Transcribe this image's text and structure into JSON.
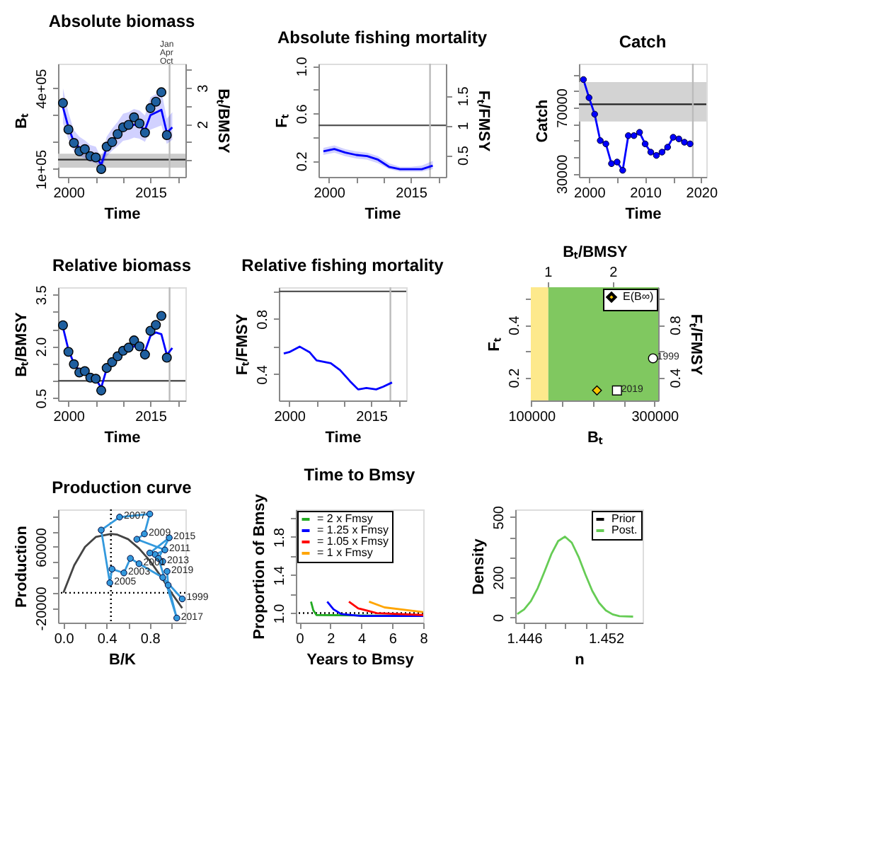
{
  "chart_data": [
    {
      "type": "line",
      "title": "Absolute biomass",
      "xlabel": "Time",
      "ylabel": "Bₜ",
      "y2label": "Bₜ/BMSY",
      "annotations": [
        "Jan",
        "Apr",
        "Oct"
      ],
      "xlim": [
        1998.1,
        2021.4
      ],
      "xticks": [
        2000,
        {
          "value": 2005,
          "label": null
        },
        {
          "value": 2010,
          "label": null
        },
        2015,
        {
          "value": 2020,
          "label": null
        }
      ],
      "ylim": [
        71000,
        491000
      ],
      "yticks": [
        {
          "value": 100000,
          "label": "1e+05"
        },
        {
          "value": 200000,
          "label": null
        },
        {
          "value": 300000,
          "label": null
        },
        {
          "value": 400000,
          "label": "4e+05"
        }
      ],
      "y2lim": [
        0.54,
        3.67
      ],
      "y2ticks": [
        {
          "value": 1,
          "label": null
        },
        {
          "value": 1.5,
          "label": null
        },
        2,
        {
          "value": 2.5,
          "label": null
        },
        3,
        {
          "value": 3.5,
          "label": null
        }
      ],
      "bands": [
        {
          "axis": "y",
          "from": 105000,
          "to": 157000,
          "color": "#cccccc"
        }
      ],
      "ref_lines": [
        {
          "axis": "y",
          "value": 135000,
          "color": "#333333"
        },
        {
          "axis": "x",
          "value": 2018.5,
          "color": "#bbbbbb"
        }
      ],
      "series": [
        {
          "type": "line",
          "color": "#0000ff",
          "x": [
            1999,
            2000,
            2001,
            2002,
            2003,
            2004,
            2005,
            2006,
            2007,
            2008,
            2009,
            2010,
            2011,
            2012,
            2013,
            2014,
            2015,
            2016,
            2017,
            2018,
            2019
          ],
          "values": [
            330000,
            255000,
            200000,
            180000,
            170000,
            155000,
            150000,
            115000,
            180000,
            205000,
            225000,
            250000,
            255000,
            265000,
            260000,
            245000,
            300000,
            310000,
            320000,
            235000,
            255000
          ],
          "lower": [
            270000,
            210000,
            165000,
            148000,
            140000,
            127000,
            123000,
            95000,
            148000,
            168000,
            185000,
            205000,
            209000,
            217000,
            213000,
            201000,
            246000,
            254000,
            262000,
            193000,
            209000
          ],
          "upper": [
            400000,
            310000,
            244000,
            220000,
            207000,
            189000,
            183000,
            140000,
            220000,
            250000,
            275000,
            305000,
            311000,
            323000,
            317000,
            299000,
            366000,
            378000,
            390000,
            287000,
            311000
          ]
        },
        {
          "type": "scatter",
          "marker": "circle",
          "color": "#1f5f9f",
          "x": [
            1999,
            2000,
            2001,
            2002,
            2003,
            2004,
            2005,
            2006,
            2007,
            2008,
            2009,
            2010,
            2011,
            2012,
            2013,
            2014,
            2015,
            2016,
            2017,
            2018
          ],
          "values": [
            345000,
            247000,
            197000,
            166000,
            174000,
            148000,
            143000,
            100000,
            183000,
            200000,
            230000,
            255000,
            264000,
            292000,
            269000,
            235000,
            326000,
            350000,
            385000,
            226000
          ]
        }
      ]
    },
    {
      "type": "line",
      "title": "Absolute fishing mortality",
      "xlabel": "Time",
      "ylabel": "Fₜ",
      "y2label": "Fₜ/FMSY",
      "xlim": [
        1998.1,
        2021.4
      ],
      "xticks": [
        2000,
        {
          "value": 2005,
          "label": null
        },
        {
          "value": 2010,
          "label": null
        },
        2015,
        {
          "value": 2020,
          "label": null
        }
      ],
      "ylim": [
        0.065,
        1.02
      ],
      "yticks": [
        0.2,
        {
          "value": 0.4,
          "label": null
        },
        0.6,
        {
          "value": 0.8,
          "label": null
        },
        {
          "value": 1,
          "label": "1.0"
        }
      ],
      "y2lim": [
        0.13,
        2.04
      ],
      "y2ticks": [
        0.5,
        1,
        1.5
      ],
      "ref_lines": [
        {
          "axis": "y",
          "value": 0.5,
          "color": "#555555"
        },
        {
          "axis": "x",
          "value": 2018.5,
          "color": "#bbbbbb"
        }
      ],
      "series": [
        {
          "type": "line",
          "color": "#0000ff",
          "x": [
            1999,
            2001,
            2003,
            2005,
            2007,
            2009,
            2011,
            2013,
            2015,
            2017,
            2019
          ],
          "values": [
            0.28,
            0.3,
            0.27,
            0.25,
            0.24,
            0.21,
            0.15,
            0.13,
            0.13,
            0.13,
            0.16
          ],
          "lower": [
            0.25,
            0.27,
            0.24,
            0.22,
            0.21,
            0.18,
            0.13,
            0.11,
            0.11,
            0.11,
            0.13
          ],
          "upper": [
            0.31,
            0.33,
            0.3,
            0.28,
            0.27,
            0.24,
            0.18,
            0.15,
            0.15,
            0.16,
            0.2
          ]
        }
      ]
    },
    {
      "type": "line",
      "title": "Catch",
      "xlabel": "Time",
      "ylabel": "Catch",
      "marker": "circle",
      "xlim": [
        1998.2,
        2020.9
      ],
      "xticks": [
        2000,
        {
          "value": 2005,
          "label": null
        },
        2010,
        {
          "value": 2015,
          "label": null
        },
        2020
      ],
      "ylim": [
        28000,
        96600
      ],
      "yticks": [
        30000,
        {
          "value": 40000,
          "label": null
        },
        {
          "value": 50000,
          "label": null
        },
        {
          "value": 60000,
          "label": null
        },
        70000,
        {
          "value": 80000,
          "label": null
        },
        {
          "value": 90000,
          "label": null
        }
      ],
      "bands": [
        {
          "axis": "y",
          "from": 61600,
          "to": 85500,
          "color": "#d3d3d3"
        }
      ],
      "ref_lines": [
        {
          "axis": "y",
          "value": 72000,
          "color": "#222222"
        },
        {
          "axis": "x",
          "value": 2018.5,
          "color": "#bbbbbb"
        }
      ],
      "series": [
        {
          "type": "line",
          "color": "#0000ff",
          "x": [
            1999,
            2000,
            2001,
            2002,
            2003,
            2004,
            2005,
            2006,
            2007,
            2008,
            2009,
            2010,
            2011,
            2012,
            2013,
            2014,
            2015,
            2016,
            2017,
            2018
          ],
          "values": [
            87000,
            76000,
            66000,
            50000,
            48000,
            36000,
            37000,
            32000,
            53000,
            53000,
            55000,
            48000,
            43000,
            41000,
            43000,
            46000,
            52000,
            51000,
            49000,
            48000
          ]
        }
      ]
    },
    {
      "type": "line",
      "title": "Relative biomass",
      "xlabel": "Time",
      "ylabel": "Bₜ/BMSY",
      "xlim": [
        1998.1,
        2021.4
      ],
      "xticks": [
        2000,
        {
          "value": 2005,
          "label": null
        },
        {
          "value": 2010,
          "label": null
        },
        2015,
        {
          "value": 2020,
          "label": null
        }
      ],
      "ylim": [
        0.43,
        3.71
      ],
      "yticks": [
        0.5,
        {
          "value": 1,
          "label": null
        },
        {
          "value": 1.5,
          "label": null
        },
        {
          "value": 2,
          "label": "2.0"
        },
        {
          "value": 2.5,
          "label": null
        },
        {
          "value": 3,
          "label": null
        },
        3.5
      ],
      "ref_lines": [
        {
          "axis": "y",
          "value": 1,
          "color": "#555555"
        },
        {
          "axis": "x",
          "value": 2018.5,
          "color": "#bbbbbb"
        }
      ],
      "series": [
        {
          "type": "line",
          "color": "#0000ff",
          "x": [
            1999,
            2000,
            2001,
            2002,
            2003,
            2004,
            2005,
            2006,
            2007,
            2008,
            2009,
            2010,
            2011,
            2012,
            2013,
            2014,
            2015,
            2016,
            2017,
            2018,
            2019
          ],
          "values": [
            2.55,
            1.9,
            1.5,
            1.3,
            1.25,
            1.12,
            1.05,
            0.8,
            1.35,
            1.5,
            1.68,
            1.82,
            1.92,
            2.0,
            1.95,
            1.85,
            2.3,
            2.4,
            2.35,
            1.75,
            1.95
          ]
        },
        {
          "type": "scatter",
          "marker": "circle",
          "color": "#1f5f9f",
          "x": [
            1999,
            2000,
            2001,
            2002,
            2003,
            2004,
            2005,
            2006,
            2007,
            2008,
            2009,
            2010,
            2011,
            2012,
            2013,
            2014,
            2015,
            2016,
            2017,
            2018
          ],
          "values": [
            2.61,
            1.84,
            1.48,
            1.24,
            1.28,
            1.09,
            1.06,
            0.72,
            1.37,
            1.54,
            1.71,
            1.87,
            1.96,
            2.17,
            2.0,
            1.76,
            2.45,
            2.62,
            2.88,
            1.67
          ]
        }
      ]
    },
    {
      "type": "line",
      "title": "Relative fishing mortality",
      "xlabel": "Time",
      "ylabel": "Fₜ/FMSY",
      "xlim": [
        1998.1,
        2021.4
      ],
      "xticks": [
        2000,
        {
          "value": 2005,
          "label": null
        },
        {
          "value": 2010,
          "label": null
        },
        2015,
        {
          "value": 2020,
          "label": null
        }
      ],
      "ylim": [
        0.21,
        1.03
      ],
      "yticks": [
        0.4,
        {
          "value": 0.6,
          "label": null
        },
        0.8,
        {
          "value": 1,
          "label": null
        }
      ],
      "ref_lines": [
        {
          "axis": "y",
          "value": 1,
          "color": "#555555"
        },
        {
          "axis": "x",
          "value": 2018.5,
          "color": "#bbbbbb"
        }
      ],
      "series": [
        {
          "type": "line",
          "color": "#0000ff",
          "x": [
            1999,
            2000,
            2001.9,
            2003.7,
            2005,
            2006.3,
            2007.6,
            2009.3,
            2011.1,
            2012.6,
            2014.1,
            2015.9,
            2017.2,
            2018.8
          ],
          "values": [
            0.55,
            0.56,
            0.6,
            0.56,
            0.5,
            0.49,
            0.48,
            0.43,
            0.35,
            0.29,
            0.3,
            0.29,
            0.31,
            0.34
          ]
        }
      ]
    },
    {
      "type": "scatter",
      "xlabel": "Bₜ",
      "ylabel": "Fₜ",
      "x2label": "Bₜ/BMSY",
      "y2label": "Fₜ/FMSY",
      "legend": "top right",
      "xlim": [
        99000,
        306000
      ],
      "xticks": [
        100000,
        {
          "value": 150000,
          "label": null
        },
        {
          "value": 200000,
          "label": null
        },
        {
          "value": 250000,
          "label": null
        },
        300000
      ],
      "ylim": [
        0.113,
        0.543
      ],
      "yticks": [
        0.2,
        {
          "value": 0.3,
          "label": null
        },
        0.4,
        {
          "value": 0.5,
          "label": null
        }
      ],
      "x2lim": [
        0.74,
        2.7
      ],
      "x2ticks": [
        1,
        2
      ],
      "y2lim": [
        0.226,
        1.086
      ],
      "y2ticks": [
        0.4,
        {
          "value": 0.6,
          "label": null
        },
        0.8,
        {
          "value": 1,
          "label": null
        }
      ],
      "bands": [
        {
          "axis": "x",
          "from": 99000,
          "to": 127500,
          "color": "#fde98c"
        },
        {
          "axis": "x",
          "from": 127500,
          "to": 306000,
          "color": "#80c860"
        }
      ],
      "annotations": [
        {
          "text": "1999",
          "x": 297500,
          "y": 0.273
        },
        {
          "text": "2019",
          "x": 239000,
          "y": 0.151
        }
      ],
      "series": [
        {
          "name": "E(B∞)",
          "type": "scatter",
          "marker": "diamond",
          "color": "#f5c400",
          "x": [
            206500
          ],
          "values": [
            0.151
          ]
        },
        {
          "type": "scatter",
          "marker": "circle",
          "color": "#ffffff",
          "x": [
            297500
          ],
          "values": [
            0.273
          ]
        },
        {
          "type": "scatter",
          "marker": "square",
          "color": "#ffffff",
          "x": [
            239000
          ],
          "values": [
            0.151
          ]
        }
      ]
    },
    {
      "type": "line",
      "title": "Production curve",
      "xlabel": "B/K",
      "ylabel": "Production",
      "xlim": [
        -0.05,
        1.13
      ],
      "xticks": [
        {
          "value": 0,
          "label": "0.0"
        },
        {
          "value": 0.2,
          "label": null
        },
        0.4,
        {
          "value": 0.6,
          "label": null
        },
        0.8,
        {
          "value": 1,
          "label": null
        }
      ],
      "ylim": [
        -39000,
        109000
      ],
      "yticks": [
        -20000,
        {
          "value": 0,
          "label": null
        },
        {
          "value": 20000,
          "label": null
        },
        {
          "value": 40000,
          "label": null
        },
        60000,
        {
          "value": 80000,
          "label": null
        },
        {
          "value": 100000,
          "label": null
        }
      ],
      "ref_lines": [
        {
          "axis": "x",
          "value": 0.44,
          "color": "#000000",
          "line_style": "dotted"
        },
        {
          "axis": "y",
          "value": 0,
          "color": "#000000",
          "line_style": "dotted"
        }
      ],
      "series": [
        {
          "type": "line",
          "color": "#444444",
          "x": [
            0,
            0.1,
            0.2,
            0.3,
            0.44,
            0.5,
            0.6,
            0.7,
            0.8,
            0.9,
            1.0,
            1.1
          ],
          "values": [
            0,
            36000,
            60000,
            73000,
            77000,
            76000,
            70000,
            58000,
            42000,
            22000,
            0,
            -20000
          ]
        },
        {
          "type": "line",
          "marker": "circle",
          "color": "#3399dd",
          "x": [
            1.1,
            0.92,
            0.7,
            0.62,
            0.56,
            0.45,
            0.43,
            0.35,
            0.52,
            0.8,
            0.75,
            0.68,
            0.94,
            0.85,
            0.92,
            0.8,
            0.98,
            0.88,
            1.05,
            0.97,
            0.96
          ],
          "values": [
            -8000,
            20000,
            38000,
            45000,
            26000,
            31000,
            13000,
            82000,
            99000,
            103000,
            77000,
            70000,
            56000,
            50000,
            41000,
            52000,
            72000,
            45000,
            -33000,
            10000,
            28000
          ]
        }
      ],
      "annotations": [
        {
          "text": "1999",
          "x": 1.1,
          "y": -8000
        },
        {
          "text": "2001",
          "x": 0.7,
          "y": 38000
        },
        {
          "text": "2003",
          "x": 0.56,
          "y": 26000
        },
        {
          "text": "2005",
          "x": 0.43,
          "y": 13000
        },
        {
          "text": "2007",
          "x": 0.52,
          "y": 99000
        },
        {
          "text": "2009",
          "x": 0.75,
          "y": 77000
        },
        {
          "text": "2011",
          "x": 0.94,
          "y": 56000
        },
        {
          "text": "2013",
          "x": 0.92,
          "y": 41000
        },
        {
          "text": "2015",
          "x": 0.98,
          "y": 72000
        },
        {
          "text": "2017",
          "x": 1.05,
          "y": -33000
        },
        {
          "text": "2019",
          "x": 0.96,
          "y": 28000
        }
      ]
    },
    {
      "type": "line",
      "title": "Time to Bmsy",
      "xlabel": "Years to Bmsy",
      "ylabel": "Proportion of Bmsy",
      "legend": "top left",
      "xlim": [
        -0.23,
        8
      ],
      "xticks": [
        0,
        2,
        4,
        6,
        8
      ],
      "ylim": [
        0.9,
        2.09
      ],
      "yticks": [
        {
          "value": 1,
          "label": "1.0"
        },
        {
          "value": 1.2,
          "label": null
        },
        1.4,
        {
          "value": 1.6,
          "label": null
        },
        1.8,
        {
          "value": 2,
          "label": null
        }
      ],
      "ref_lines": [
        {
          "axis": "y",
          "value": 1,
          "color": "#000000",
          "line_style": "dotted"
        }
      ],
      "series": [
        {
          "name": "= 2 x Fmsy",
          "color": "#22aa22",
          "x": [
            0.75,
            0.9,
            1.1,
            8
          ],
          "values": [
            1.12,
            1.03,
            0.98,
            0.97
          ]
        },
        {
          "name": "= 1.25 x Fmsy",
          "color": "#0000ff",
          "x": [
            1.8,
            2.2,
            2.7,
            4,
            8
          ],
          "values": [
            1.12,
            1.04,
            0.99,
            0.97,
            0.97
          ]
        },
        {
          "name": "= 1.05 x Fmsy",
          "color": "#ff0000",
          "x": [
            3.2,
            3.8,
            5,
            8
          ],
          "values": [
            1.12,
            1.05,
            1.0,
            0.98
          ]
        },
        {
          "name": "= 1 x Fmsy",
          "color": "#ffa500",
          "x": [
            4.5,
            5.5,
            8
          ],
          "values": [
            1.12,
            1.06,
            1.01
          ]
        }
      ]
    },
    {
      "type": "line",
      "xlabel": "n",
      "ylabel": "Density",
      "legend": "top right",
      "xlim": [
        1.44535,
        1.4547
      ],
      "xticks": [
        1.446,
        {
          "value": 1.4475,
          "label": null
        },
        {
          "value": 1.449,
          "label": null
        },
        {
          "value": 1.4505,
          "label": null
        },
        1.452
      ],
      "ylim": [
        -27,
        538
      ],
      "yticks": [
        0,
        {
          "value": 100,
          "label": null
        },
        200,
        {
          "value": 300,
          "label": null
        },
        {
          "value": 400,
          "label": null
        },
        500
      ],
      "series": [
        {
          "name": "Prior",
          "color": "#000000"
        },
        {
          "name": "Post.",
          "color": "#66cc55",
          "x": [
            1.4455,
            1.446,
            1.4465,
            1.447,
            1.4475,
            1.448,
            1.4485,
            1.449,
            1.4495,
            1.45,
            1.4505,
            1.451,
            1.4515,
            1.452,
            1.4525,
            1.453,
            1.454
          ],
          "values": [
            16,
            39,
            80,
            145,
            228,
            315,
            380,
            402,
            372,
            301,
            213,
            132,
            72,
            34,
            14,
            5,
            3
          ]
        }
      ]
    }
  ]
}
